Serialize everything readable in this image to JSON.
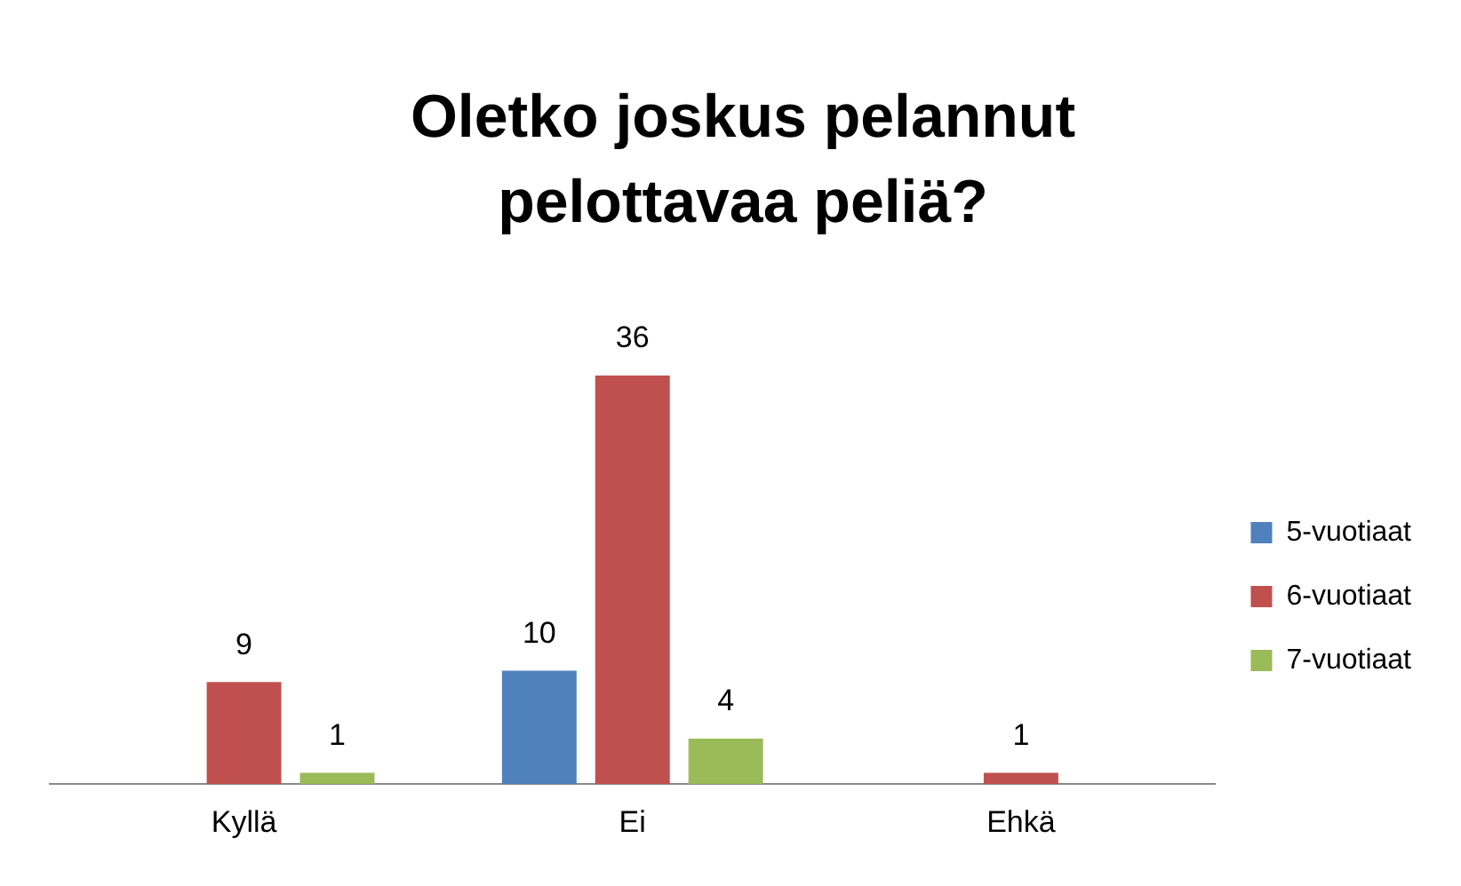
{
  "chart_data": {
    "type": "bar",
    "title": "Oletko joskus pelannut pelottavaa peliä?",
    "categories": [
      "Kyllä",
      "Ei",
      "Ehkä"
    ],
    "series": [
      {
        "name": "5-vuotiaat",
        "color": "#4f81bd",
        "values": [
          null,
          10,
          null
        ]
      },
      {
        "name": "6-vuotiaat",
        "color": "#c0504d",
        "values": [
          9,
          36,
          1
        ]
      },
      {
        "name": "7-vuotiaat",
        "color": "#9bbb59",
        "values": [
          1,
          4,
          null
        ]
      }
    ],
    "data_labels": true,
    "legend": "right",
    "grid": false
  }
}
